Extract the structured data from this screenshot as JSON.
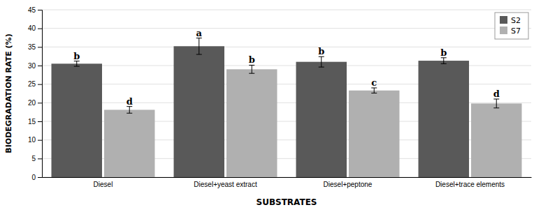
{
  "chart_data": {
    "type": "bar",
    "categories": [
      "Diesel",
      "Diesel+yeast extract",
      "Diesel+peptone",
      "Diesel+trace elements"
    ],
    "series": [
      {
        "name": "S2",
        "color": "#595959",
        "values": [
          30.5,
          35.2,
          31.0,
          31.3
        ],
        "errors": [
          0.7,
          2.2,
          1.4,
          0.8
        ],
        "annotations": [
          "b",
          "a",
          "b",
          "b"
        ]
      },
      {
        "name": "S7",
        "color": "#b0b0b0",
        "values": [
          18.1,
          29.0,
          23.3,
          19.8
        ],
        "errors": [
          0.9,
          1.1,
          0.7,
          1.2
        ],
        "annotations": [
          "d",
          "b",
          "c",
          "d"
        ]
      }
    ],
    "xlabel": "SUBSTRATES",
    "ylabel": "BIODEGRADATION RATE (%)",
    "ylim": [
      0,
      45
    ],
    "yticks": [
      0,
      5,
      10,
      15,
      20,
      25,
      30,
      35,
      40,
      45
    ],
    "grid": true,
    "legend": "upper right"
  }
}
